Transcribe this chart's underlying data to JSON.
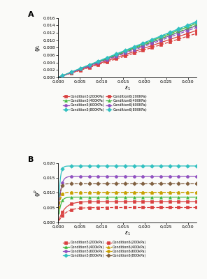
{
  "x_max": 0.032,
  "background": "#fafaf8",
  "panel_A": {
    "ylabel": "$\\psi_1$",
    "ylim": [
      0,
      0.016
    ],
    "yticks": [
      0.0,
      0.002,
      0.004,
      0.006,
      0.008,
      0.01,
      0.012,
      0.014,
      0.016
    ],
    "xlabel": "$\\varepsilon_1$",
    "xlim": [
      0,
      0.032
    ],
    "xticks": [
      0.0,
      0.005,
      0.01,
      0.015,
      0.02,
      0.025,
      0.03
    ],
    "label": "A",
    "series": [
      {
        "label": "Condition5(200KPa)",
        "color": "#d94040",
        "linestyle": "-",
        "marker": "s",
        "slope": 0.395
      },
      {
        "label": "Condition5(400KPa)",
        "color": "#40b840",
        "linestyle": "-",
        "marker": "^",
        "slope": 0.455
      },
      {
        "label": "Condition5(600KPa)",
        "color": "#9050c0",
        "linestyle": "-",
        "marker": "o",
        "slope": 0.435
      },
      {
        "label": "Condition5(800KPa)",
        "color": "#30c0c0",
        "linestyle": "-",
        "marker": "D",
        "slope": 0.47
      },
      {
        "label": "Condition6(200KPa)",
        "color": "#d94040",
        "linestyle": "--",
        "marker": "s",
        "slope": 0.37
      },
      {
        "label": "Condition6(400KPa)",
        "color": "#40b840",
        "linestyle": "--",
        "marker": "^",
        "slope": 0.44
      },
      {
        "label": "Condition6(600KPa)",
        "color": "#9050c0",
        "linestyle": "--",
        "marker": "o",
        "slope": 0.42
      },
      {
        "label": "Condition6(800KPa)",
        "color": "#30c0c0",
        "linestyle": "--",
        "marker": "D",
        "slope": 0.465
      }
    ]
  },
  "panel_B": {
    "ylabel": "$\\psi^p$",
    "ylim": [
      0,
      0.02
    ],
    "yticks": [
      0.0,
      0.005,
      0.01,
      0.015,
      0.02
    ],
    "xlabel": "$\\varepsilon_1$",
    "xlim": [
      0,
      0.032
    ],
    "xticks": [
      0.0,
      0.005,
      0.01,
      0.015,
      0.02,
      0.025,
      0.03
    ],
    "label": "B",
    "series": [
      {
        "label": "Condition5(200kPa)",
        "color": "#d94040",
        "linestyle": "-",
        "marker": "s",
        "a": 0.007,
        "b": 700
      },
      {
        "label": "Condition5(400kPa)",
        "color": "#40b840",
        "linestyle": "-",
        "marker": "^",
        "a": 0.0085,
        "b": 2000
      },
      {
        "label": "Condition5(600kPa)",
        "color": "#9050c0",
        "linestyle": "-",
        "marker": "o",
        "a": 0.0155,
        "b": 2000
      },
      {
        "label": "Condition5(800kPa)",
        "color": "#30c0c0",
        "linestyle": "-",
        "marker": "D",
        "a": 0.019,
        "b": 3000
      },
      {
        "label": "Condition6(200kPa)",
        "color": "#d94040",
        "linestyle": "--",
        "marker": "s",
        "a": 0.005,
        "b": 600
      },
      {
        "label": "Condition6(400kPa)",
        "color": "#c8a000",
        "linestyle": "--",
        "marker": "^",
        "a": 0.01,
        "b": 3000
      },
      {
        "label": "Condition6(600kPa)",
        "color": "#c8a000",
        "linestyle": "--",
        "marker": "o",
        "a": 0.01,
        "b": 3000
      },
      {
        "label": "Condition6(800kPa)",
        "color": "#806040",
        "linestyle": "--",
        "marker": "D",
        "a": 0.013,
        "b": 3000
      }
    ]
  }
}
